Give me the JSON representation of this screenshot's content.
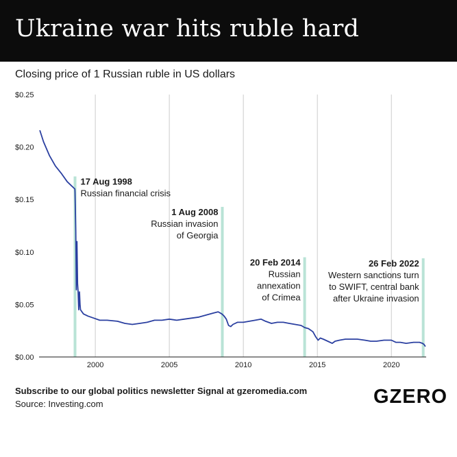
{
  "header": {
    "title": "Ukraine war hits ruble hard"
  },
  "subtitle": "Closing price of 1 Russian ruble in US dollars",
  "footer": {
    "newsletter": "Subscribe to our global politics newsletter Signal at gzeromedia.com",
    "source": "Source: Investing.com",
    "brand": "GZERO"
  },
  "colors": {
    "line": "#2a3fa0",
    "marker": "#b9e3d6",
    "grid": "#cccccc",
    "header_bg": "#0c0c0c"
  },
  "chart_data": {
    "type": "line",
    "title": "Closing price of 1 Russian ruble in US dollars",
    "xlim": [
      1996.2,
      2022.35
    ],
    "ylim": [
      0,
      0.25
    ],
    "x_ticks": [
      2000,
      2005,
      2010,
      2015,
      2020
    ],
    "x_tick_labels": [
      "2000",
      "2005",
      "2010",
      "2015",
      "2020"
    ],
    "y_ticks": [
      0,
      0.05,
      0.1,
      0.15,
      0.2,
      0.25
    ],
    "y_tick_labels": [
      "$0.00",
      "$0.05",
      "$0.10",
      "$0.15",
      "$0.20",
      "$0.25"
    ],
    "grid": "vertical",
    "series": [
      {
        "x": [
          1996.25,
          1996.5,
          1996.9,
          1997.3,
          1997.7,
          1998.1,
          1998.4,
          1998.62,
          1998.63,
          1998.68,
          1998.72,
          1998.76,
          1998.8,
          1998.84,
          1998.88,
          1998.93,
          1998.97,
          1999.0,
          1999.2,
          1999.5,
          1999.9,
          2000.3,
          2000.8,
          2001.5,
          2002.0,
          2002.5,
          2003.0,
          2003.5,
          2004.0,
          2004.5,
          2005.0,
          2005.5,
          2006.0,
          2006.5,
          2007.0,
          2007.5,
          2008.0,
          2008.3,
          2008.55,
          2008.7,
          2008.85,
          2009.0,
          2009.15,
          2009.3,
          2009.6,
          2010.0,
          2010.4,
          2010.8,
          2011.2,
          2011.5,
          2011.9,
          2012.3,
          2012.7,
          2013.1,
          2013.5,
          2013.9,
          2014.15,
          2014.4,
          2014.7,
          2014.9,
          2015.05,
          2015.2,
          2015.4,
          2015.7,
          2016.0,
          2016.2,
          2016.5,
          2016.9,
          2017.3,
          2017.7,
          2018.2,
          2018.6,
          2019.0,
          2019.5,
          2020.0,
          2020.3,
          2020.6,
          2021.0,
          2021.5,
          2021.9,
          2022.1,
          2022.2,
          2022.3
        ],
        "y": [
          0.216,
          0.205,
          0.192,
          0.182,
          0.175,
          0.167,
          0.163,
          0.16,
          0.157,
          0.12,
          0.064,
          0.11,
          0.07,
          0.062,
          0.045,
          0.062,
          0.05,
          0.045,
          0.041,
          0.039,
          0.037,
          0.035,
          0.035,
          0.034,
          0.032,
          0.031,
          0.032,
          0.033,
          0.035,
          0.035,
          0.036,
          0.035,
          0.036,
          0.037,
          0.038,
          0.04,
          0.042,
          0.043,
          0.041,
          0.039,
          0.036,
          0.03,
          0.029,
          0.031,
          0.033,
          0.033,
          0.034,
          0.035,
          0.036,
          0.034,
          0.032,
          0.033,
          0.033,
          0.032,
          0.031,
          0.03,
          0.028,
          0.027,
          0.024,
          0.019,
          0.016,
          0.018,
          0.017,
          0.015,
          0.013,
          0.015,
          0.016,
          0.017,
          0.017,
          0.017,
          0.016,
          0.015,
          0.015,
          0.016,
          0.016,
          0.014,
          0.014,
          0.013,
          0.014,
          0.014,
          0.013,
          0.012,
          0.01
        ]
      }
    ],
    "annotations": [
      {
        "x": 1998.63,
        "top": 0.172,
        "date": "17 Aug 1998",
        "lines": [
          "Russian financial crisis"
        ],
        "align": "left"
      },
      {
        "x": 2008.58,
        "top": 0.143,
        "date": "1 Aug 2008",
        "lines": [
          "Russian invasion",
          "of Georgia"
        ],
        "align": "right"
      },
      {
        "x": 2014.14,
        "top": 0.095,
        "date": "20 Feb 2014",
        "lines": [
          "Russian",
          "annexation",
          "of Crimea"
        ],
        "align": "right"
      },
      {
        "x": 2022.15,
        "top": 0.094,
        "date": "26 Feb 2022",
        "lines": [
          "Western sanctions turn",
          "to SWIFT, central bank",
          "after Ukraine invasion"
        ],
        "align": "right"
      }
    ]
  }
}
